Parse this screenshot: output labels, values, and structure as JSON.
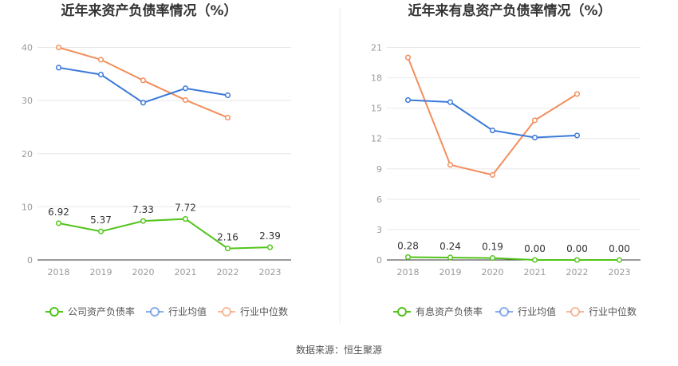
{
  "source_label": "数据来源：恒生聚源",
  "chart_data": [
    {
      "type": "line",
      "title": "近年来资产负债率情况（%）",
      "categories": [
        "2018",
        "2019",
        "2020",
        "2021",
        "2022",
        "2023"
      ],
      "ylim": [
        0,
        45
      ],
      "yticks": [
        "0",
        "10",
        "20",
        "30",
        "40"
      ],
      "grid": true,
      "legend_position": "bottom",
      "series": [
        {
          "name": "公司资产负债率",
          "color": "#52c41a",
          "values": [
            6.92,
            5.37,
            7.33,
            7.72,
            2.16,
            2.39
          ],
          "labels": [
            "6.92",
            "5.37",
            "7.33",
            "7.72",
            "2.16",
            "2.39"
          ]
        },
        {
          "name": "行业均值",
          "color": "#3a78d8",
          "values": [
            36.2,
            34.9,
            29.6,
            32.3,
            31.0,
            null
          ]
        },
        {
          "name": "行业中位数",
          "color": "#f28e5c",
          "values": [
            40.0,
            37.7,
            33.8,
            30.1,
            26.8,
            null
          ]
        }
      ]
    },
    {
      "type": "line",
      "title": "近年来有息资产负债率情况（%）",
      "categories": [
        "2018",
        "2019",
        "2020",
        "2021",
        "2022",
        "2023"
      ],
      "ylim": [
        0,
        22
      ],
      "yticks": [
        "0",
        "3",
        "6",
        "9",
        "12",
        "15",
        "18",
        "21"
      ],
      "grid": true,
      "legend_position": "bottom",
      "series": [
        {
          "name": "有息资产负债率",
          "color": "#52c41a",
          "values": [
            0.28,
            0.24,
            0.19,
            0.0,
            0.0,
            0.0
          ],
          "labels": [
            "0.28",
            "0.24",
            "0.19",
            "0.00",
            "0.00",
            "0.00"
          ]
        },
        {
          "name": "行业均值",
          "color": "#3a78d8",
          "values": [
            15.8,
            15.6,
            12.8,
            12.1,
            12.3,
            null
          ]
        },
        {
          "name": "行业中位数",
          "color": "#f28e5c",
          "values": [
            20.0,
            9.4,
            8.4,
            13.8,
            16.4,
            null
          ]
        }
      ]
    }
  ]
}
